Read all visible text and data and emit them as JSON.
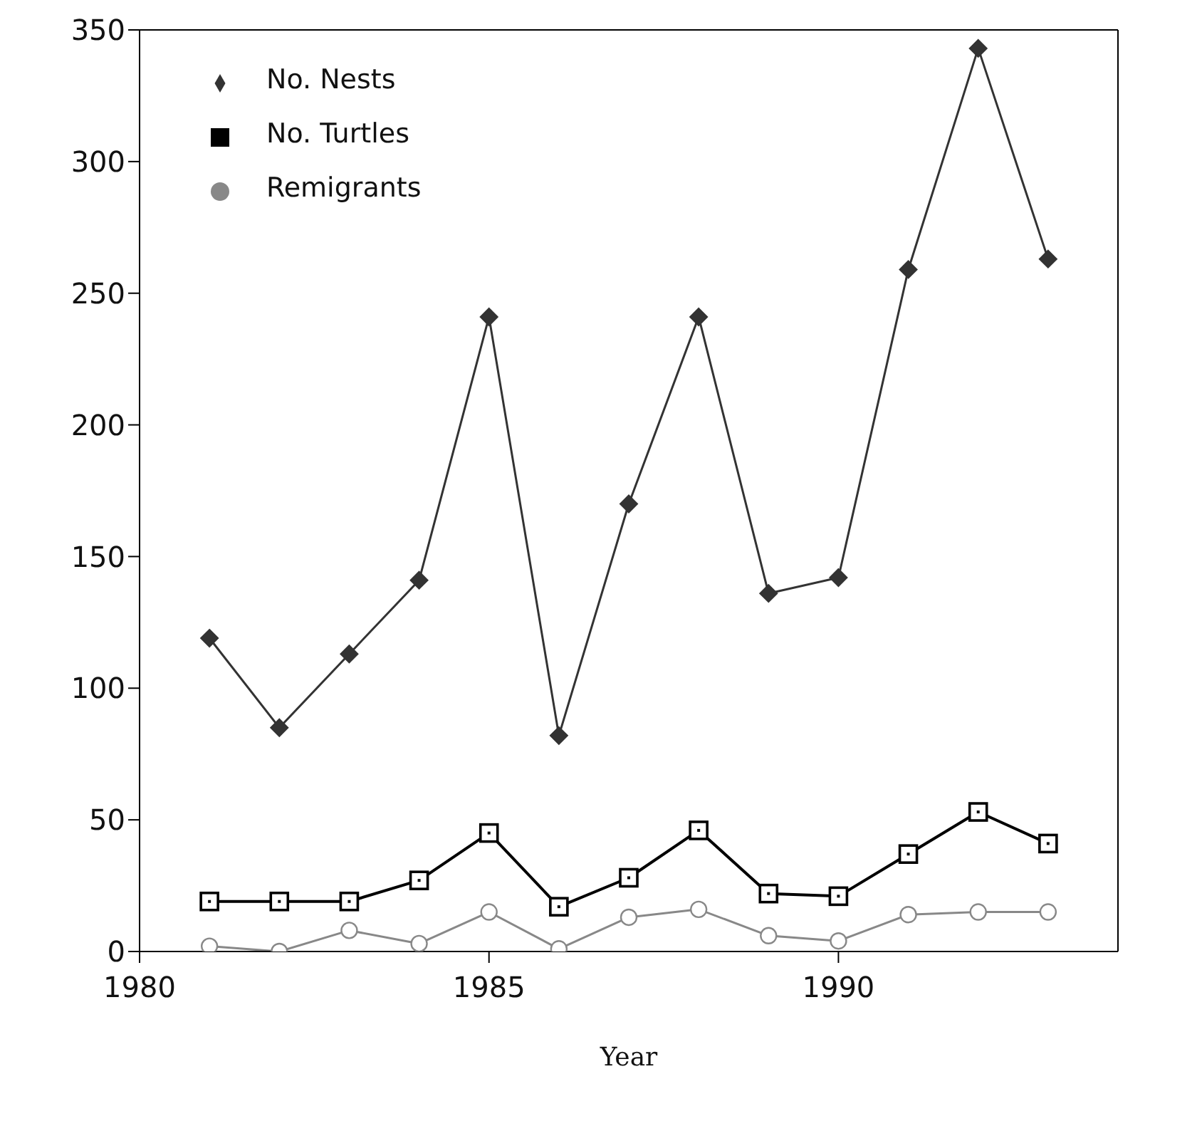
{
  "chart_data": {
    "type": "line",
    "xlabel": "Year",
    "x": [
      1981,
      1982,
      1983,
      1984,
      1985,
      1986,
      1987,
      1988,
      1989,
      1990,
      1991,
      1992,
      1993
    ],
    "series": [
      {
        "name": "No. Nests",
        "color": "#333333",
        "marker": "diamond",
        "values": [
          119,
          85,
          113,
          141,
          241,
          82,
          170,
          241,
          136,
          142,
          259,
          343,
          263
        ]
      },
      {
        "name": "No. Turtles",
        "color": "#000000",
        "marker": "square",
        "values": [
          19,
          19,
          19,
          27,
          45,
          17,
          28,
          46,
          22,
          21,
          37,
          53,
          41
        ]
      },
      {
        "name": "Remigrants",
        "color": "#888888",
        "marker": "circle",
        "values": [
          2,
          0,
          8,
          3,
          15,
          1,
          13,
          16,
          6,
          4,
          14,
          15,
          15
        ]
      }
    ],
    "xlim": [
      1980,
      1994
    ],
    "xticks": [
      1980,
      1985,
      1990
    ],
    "ylim": [
      0,
      350
    ],
    "yticks": [
      0,
      50,
      100,
      150,
      200,
      250,
      300,
      350
    ],
    "grid": false,
    "legend": "top left"
  }
}
